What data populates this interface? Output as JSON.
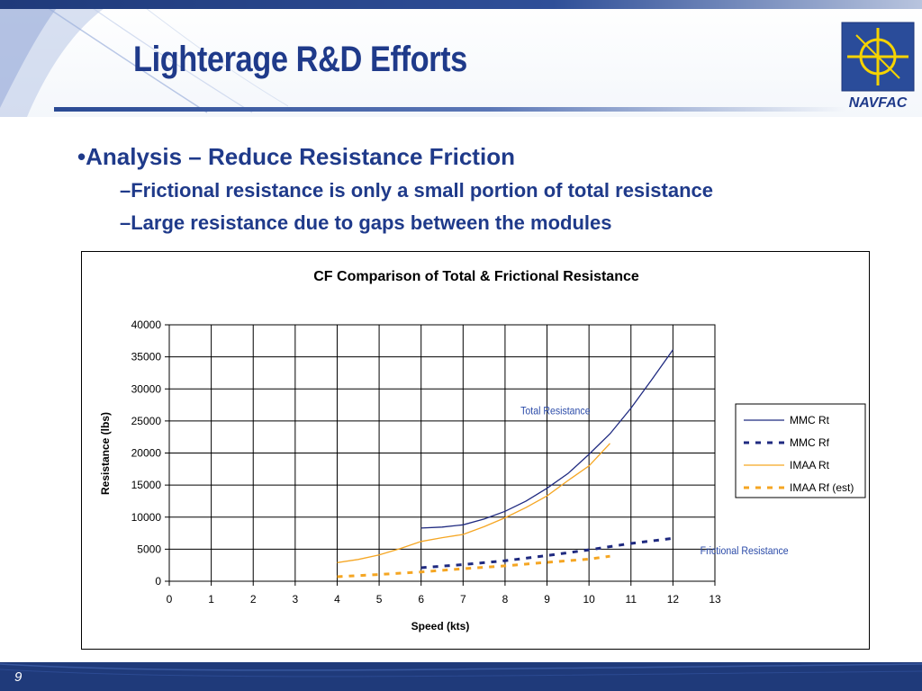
{
  "slide": {
    "title": "Lighterage R&D Efforts",
    "page_number": "9",
    "logo_text": "NAVFAC"
  },
  "bullets": {
    "main": "•Analysis – Reduce Resistance Friction",
    "sub": [
      "–Frictional resistance is only a small portion of total resistance",
      "–Large resistance due to gaps between the modules"
    ]
  },
  "colors": {
    "title": "#1f3a8a",
    "header_band": "#1f3a7a",
    "mmc": "#1f2a80",
    "imaa": "#f5a623",
    "logo_yellow": "#f5d300"
  },
  "chart_data": {
    "type": "line",
    "title": "CF Comparison of Total & Frictional Resistance",
    "xlabel": "Speed (kts)",
    "ylabel": "Resistance (lbs)",
    "xlim": [
      0,
      13
    ],
    "ylim": [
      0,
      40000
    ],
    "x_ticks": [
      0,
      1,
      2,
      3,
      4,
      5,
      6,
      7,
      8,
      9,
      10,
      11,
      12,
      13
    ],
    "y_ticks": [
      0,
      5000,
      10000,
      15000,
      20000,
      25000,
      30000,
      35000,
      40000
    ],
    "grid": true,
    "legend_position": "right",
    "annotations": [
      {
        "text": "Total Resistance",
        "x": 9.2,
        "y": 26000
      },
      {
        "text": "Frictional Resistance",
        "x": 13.7,
        "y": 4200
      }
    ],
    "series": [
      {
        "name": "MMC Rt",
        "style": "solid",
        "color": "#1f2a80",
        "points": [
          [
            6,
            8300
          ],
          [
            6.5,
            8450
          ],
          [
            7,
            8800
          ],
          [
            7.5,
            9700
          ],
          [
            8,
            10900
          ],
          [
            8.5,
            12500
          ],
          [
            9,
            14500
          ],
          [
            9.5,
            16800
          ],
          [
            10,
            19800
          ],
          [
            10.5,
            23000
          ],
          [
            11,
            27000
          ],
          [
            11.5,
            31500
          ],
          [
            12,
            36100
          ]
        ]
      },
      {
        "name": "MMC Rf",
        "style": "dashed",
        "color": "#1f2a80",
        "points": [
          [
            6,
            2100
          ],
          [
            7,
            2600
          ],
          [
            8,
            3200
          ],
          [
            9,
            4000
          ],
          [
            10,
            4900
          ],
          [
            11,
            5900
          ],
          [
            12,
            6700
          ]
        ]
      },
      {
        "name": "IMAA Rt",
        "style": "solid",
        "color": "#f5a623",
        "points": [
          [
            4,
            2900
          ],
          [
            4.5,
            3400
          ],
          [
            5,
            4100
          ],
          [
            5.5,
            5100
          ],
          [
            6,
            6200
          ],
          [
            6.5,
            6800
          ],
          [
            7,
            7300
          ],
          [
            7.5,
            8500
          ],
          [
            8,
            9900
          ],
          [
            8.5,
            11500
          ],
          [
            9,
            13300
          ],
          [
            9.5,
            15700
          ],
          [
            10,
            18000
          ],
          [
            10.5,
            21500
          ]
        ]
      },
      {
        "name": "IMAA Rf (est)",
        "style": "dashed",
        "color": "#f5a623",
        "points": [
          [
            4,
            700
          ],
          [
            5,
            1050
          ],
          [
            6,
            1450
          ],
          [
            7,
            1950
          ],
          [
            8,
            2400
          ],
          [
            9,
            2950
          ],
          [
            10,
            3450
          ],
          [
            10.5,
            3900
          ]
        ]
      }
    ]
  }
}
